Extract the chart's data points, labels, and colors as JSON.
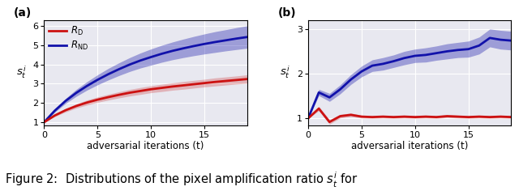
{
  "fig_width": 6.4,
  "fig_height": 2.36,
  "bg_color": "#e8e8f0",
  "panel_a": {
    "label": "(a)",
    "xlim": [
      0,
      19
    ],
    "ylim": [
      0.85,
      6.3
    ],
    "yticks": [
      1,
      2,
      3,
      4,
      5,
      6
    ],
    "xticks": [
      0,
      5,
      10,
      15
    ],
    "xlabel": "adversarial iterations (t)",
    "ylabel": "s_t^i",
    "red_mean": [
      1.0,
      1.35,
      1.62,
      1.84,
      2.02,
      2.17,
      2.3,
      2.42,
      2.53,
      2.62,
      2.71,
      2.78,
      2.85,
      2.91,
      2.97,
      3.03,
      3.09,
      3.14,
      3.19,
      3.24
    ],
    "red_std": [
      0.0,
      0.06,
      0.09,
      0.11,
      0.13,
      0.14,
      0.15,
      0.16,
      0.17,
      0.18,
      0.18,
      0.19,
      0.19,
      0.2,
      0.2,
      0.2,
      0.21,
      0.21,
      0.21,
      0.22
    ],
    "blue_mean": [
      1.0,
      1.6,
      2.1,
      2.52,
      2.88,
      3.2,
      3.49,
      3.75,
      3.99,
      4.2,
      4.38,
      4.55,
      4.7,
      4.83,
      4.95,
      5.06,
      5.16,
      5.25,
      5.34,
      5.42
    ],
    "blue_std": [
      0.0,
      0.08,
      0.13,
      0.18,
      0.22,
      0.26,
      0.3,
      0.33,
      0.36,
      0.39,
      0.42,
      0.44,
      0.46,
      0.48,
      0.5,
      0.52,
      0.54,
      0.55,
      0.57,
      0.58
    ]
  },
  "panel_b": {
    "label": "(b)",
    "xlim": [
      0,
      19
    ],
    "ylim": [
      0.85,
      3.2
    ],
    "yticks": [
      1,
      2,
      3
    ],
    "xticks": [
      0,
      5,
      10,
      15
    ],
    "xlabel": "adversarial iterations (t)",
    "ylabel": "s_t^i",
    "red_mean": [
      1.0,
      1.22,
      0.92,
      1.05,
      1.08,
      1.04,
      1.03,
      1.04,
      1.03,
      1.04,
      1.03,
      1.04,
      1.03,
      1.05,
      1.04,
      1.03,
      1.04,
      1.03,
      1.04,
      1.03
    ],
    "red_std": [
      0.0,
      0.05,
      0.05,
      0.04,
      0.04,
      0.03,
      0.03,
      0.03,
      0.03,
      0.03,
      0.03,
      0.03,
      0.03,
      0.03,
      0.03,
      0.03,
      0.03,
      0.03,
      0.03,
      0.03
    ],
    "blue_mean": [
      1.0,
      1.58,
      1.47,
      1.65,
      1.87,
      2.05,
      2.18,
      2.22,
      2.28,
      2.35,
      2.4,
      2.42,
      2.46,
      2.5,
      2.53,
      2.55,
      2.63,
      2.8,
      2.76,
      2.74
    ],
    "blue_std": [
      0.0,
      0.07,
      0.09,
      0.1,
      0.11,
      0.12,
      0.13,
      0.14,
      0.14,
      0.15,
      0.15,
      0.16,
      0.16,
      0.17,
      0.17,
      0.18,
      0.19,
      0.2,
      0.21,
      0.21
    ]
  },
  "red_color": "#cc1111",
  "blue_color": "#1111aa",
  "blue_fill_alpha": 0.35,
  "red_fill_alpha": 0.25,
  "legend_label_red": "$R_{\\mathrm{D}}$",
  "legend_label_blue": "$R_{\\mathrm{ND}}$",
  "caption": "Figure 2:  Distributions of the pixel amplification ratio $s_t^i$ for",
  "caption_fontsize": 10.5
}
